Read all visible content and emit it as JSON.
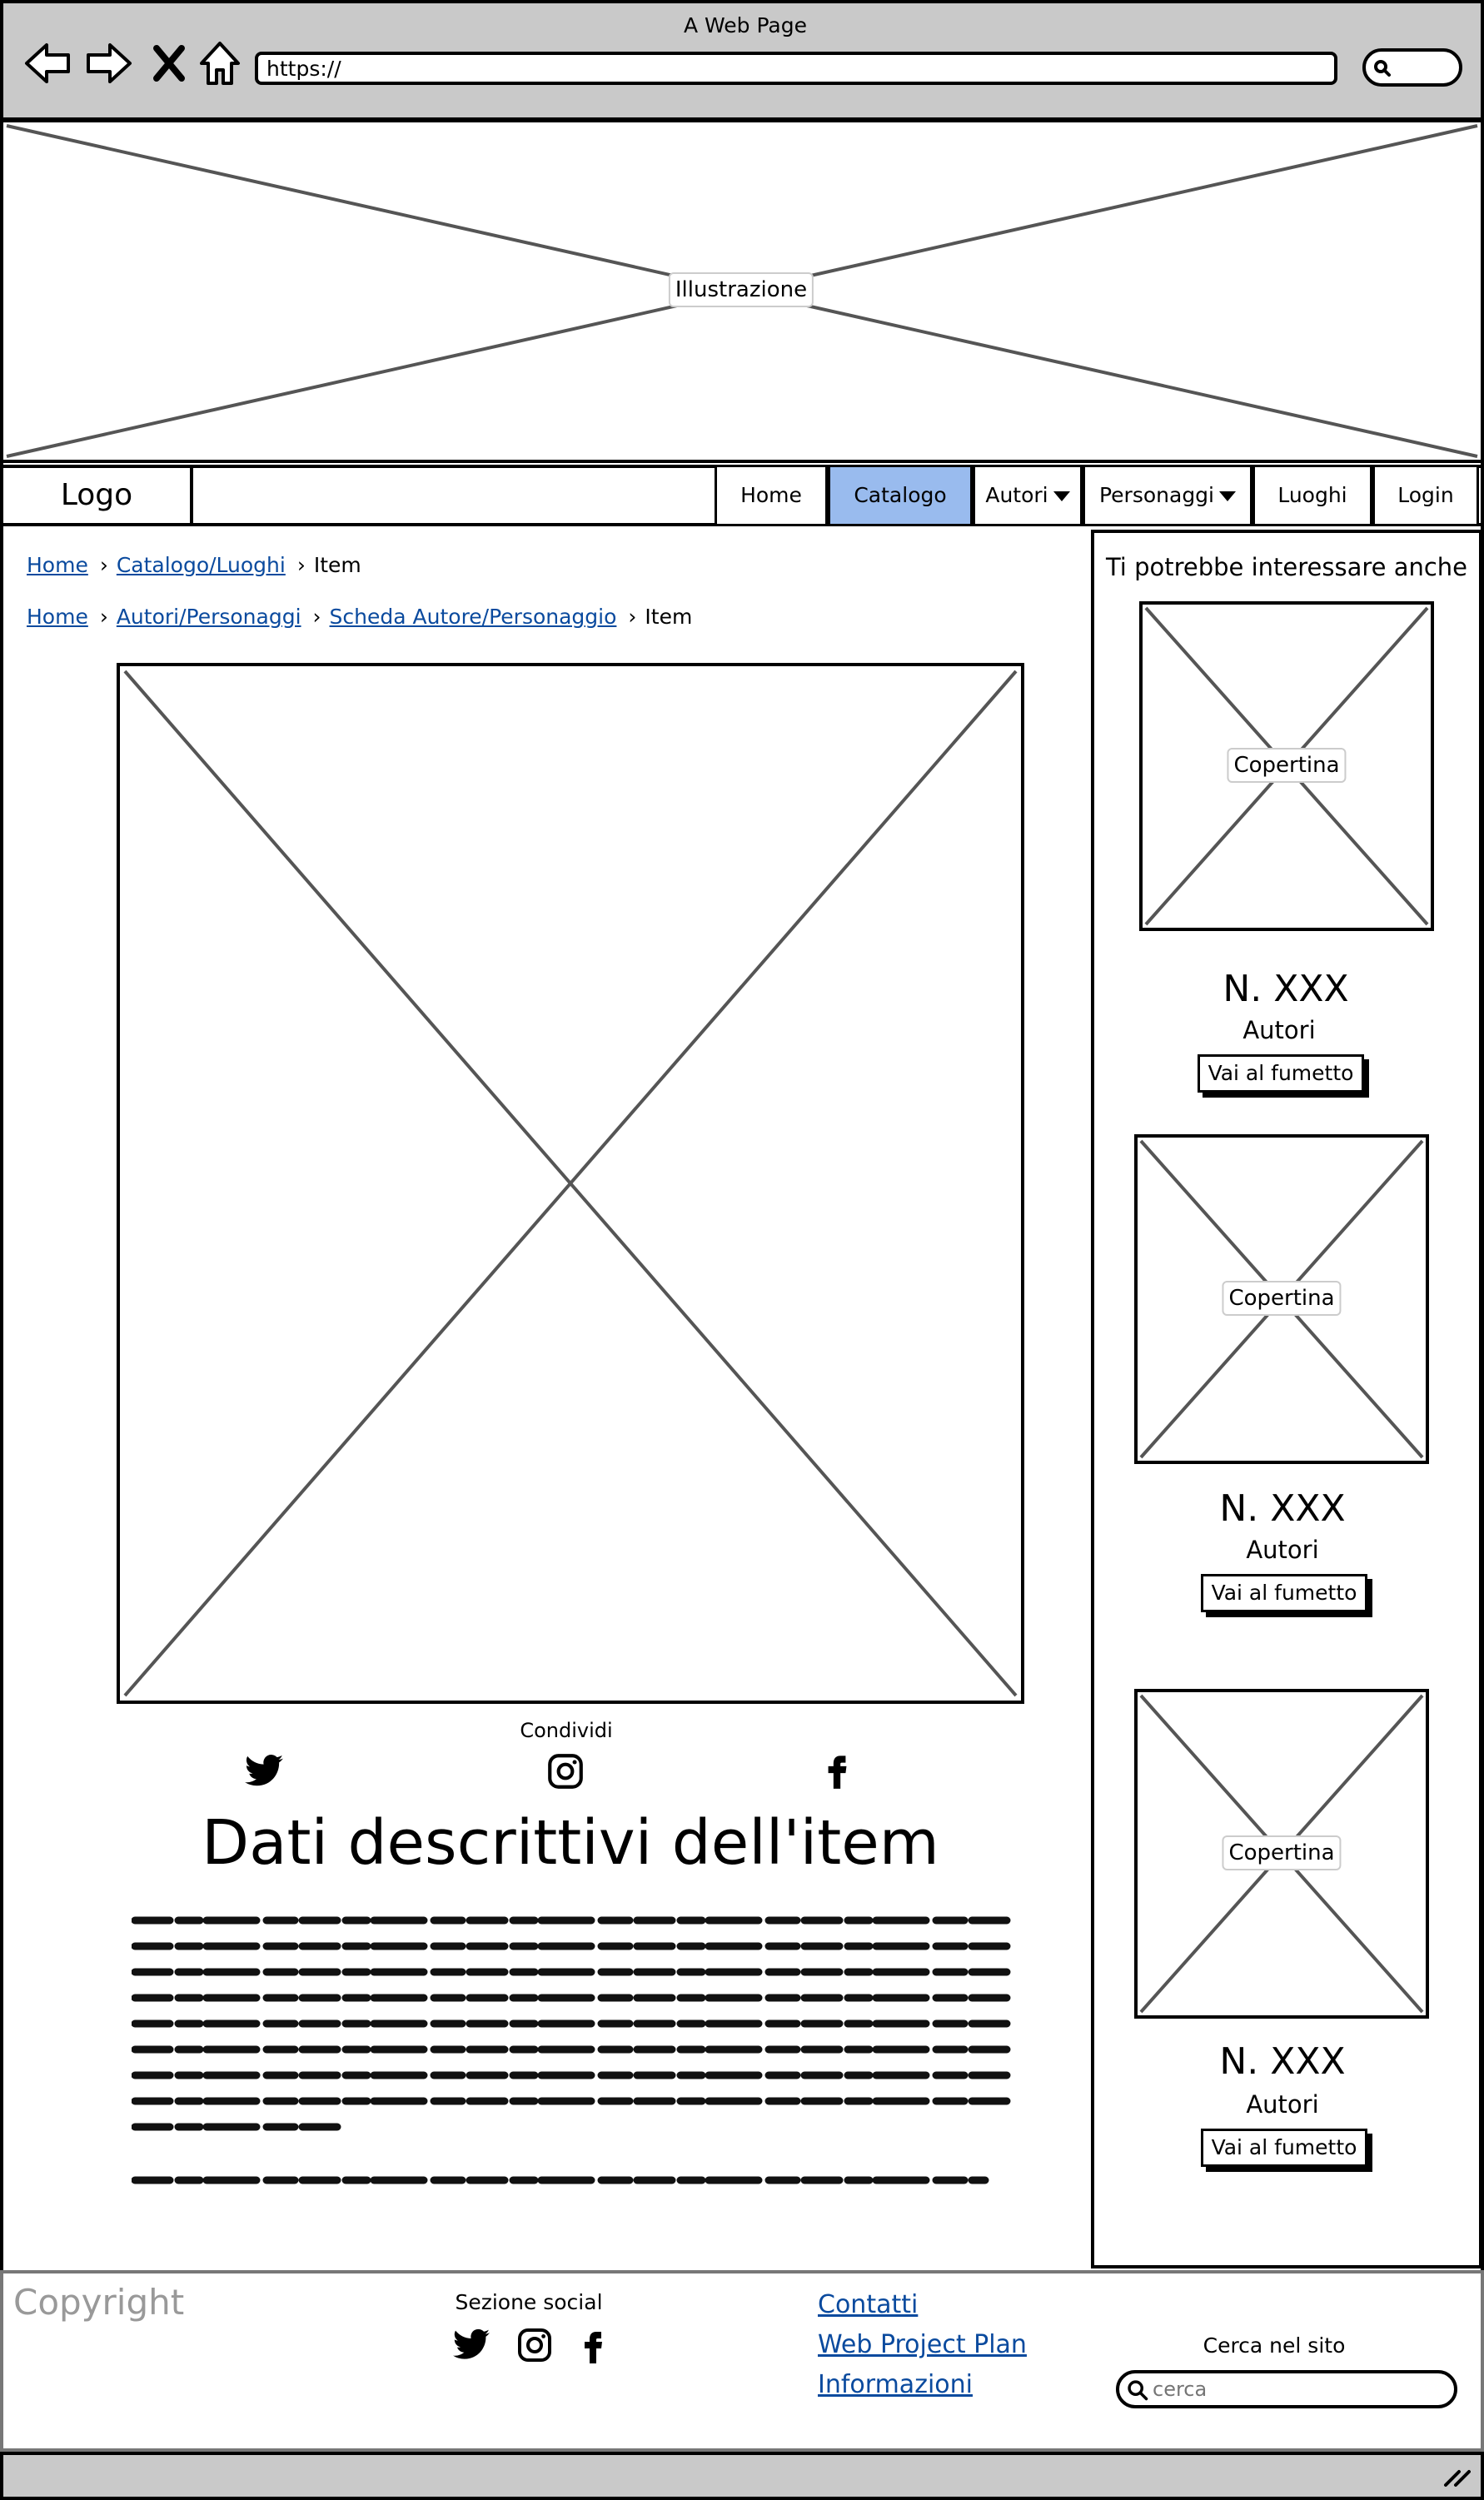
{
  "browser": {
    "window_title": "A Web Page",
    "url": "https://"
  },
  "hero": {
    "label": "Illustrazione"
  },
  "nav": {
    "logo": "Logo",
    "items": [
      {
        "label": "Home"
      },
      {
        "label": "Catalogo"
      },
      {
        "label": "Autori"
      },
      {
        "label": "Personaggi"
      },
      {
        "label": "Luoghi"
      },
      {
        "label": "Login"
      }
    ],
    "active_color": "#99bbee"
  },
  "breadcrumbs": {
    "first": {
      "home": "Home",
      "catalog": "Catalogo/Luoghi",
      "current": "Item"
    },
    "second": {
      "home": "Home",
      "authors": "Autori/Personaggi",
      "sheet": "Scheda Autore/Personaggio",
      "current": "Item"
    }
  },
  "share": {
    "label": "Condividi",
    "icons": [
      "twitter-icon",
      "instagram-icon",
      "facebook-icon"
    ]
  },
  "item": {
    "title": "Dati descrittivi dell'item"
  },
  "sidebar": {
    "title": "Ti potrebbe interessare anche",
    "cards": [
      {
        "cover_label": "Copertina",
        "number": "N. XXX",
        "authors": "Autori",
        "button": "Vai al fumetto"
      },
      {
        "cover_label": "Copertina",
        "number": "N. XXX",
        "authors": "Autori",
        "button": "Vai al fumetto"
      },
      {
        "cover_label": "Copertina",
        "number": "N. XXX",
        "authors": "Autori",
        "button": "Vai al fumetto"
      }
    ]
  },
  "footer": {
    "copyright": "Copyright",
    "social_title": "Sezione social",
    "links": [
      "Contatti",
      "Web Project Plan",
      "Informazioni"
    ],
    "search_title": "Cerca nel sito",
    "search_placeholder": "cerca",
    "link_color": "#0a4a9e"
  }
}
